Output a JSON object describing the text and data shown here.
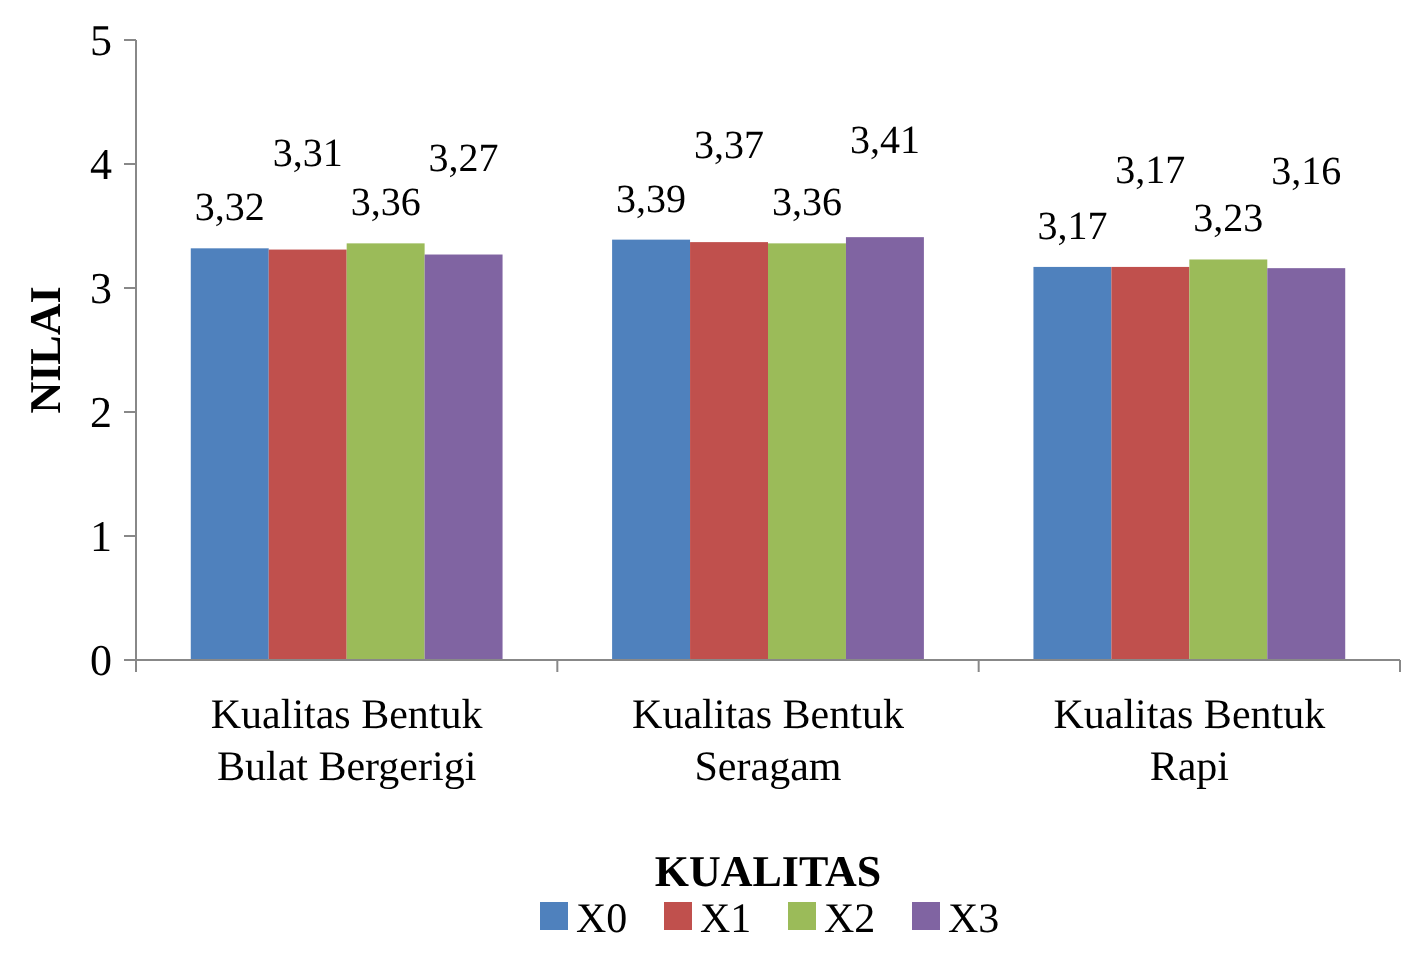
{
  "chart_data": {
    "type": "bar",
    "xlabel": "KUALITAS",
    "ylabel": "NILAI",
    "categories": [
      "Kualitas Bentuk Bulat Bergerigi",
      "Kualitas Bentuk Seragam",
      "Kualitas Bentuk Rapi"
    ],
    "series": [
      {
        "name": "X0",
        "color": "#4f81bd",
        "values": [
          3.32,
          3.39,
          3.17
        ],
        "value_labels": [
          "3,32",
          "3,39",
          "3,17"
        ]
      },
      {
        "name": "X1",
        "color": "#c0504d",
        "values": [
          3.31,
          3.37,
          3.17
        ],
        "value_labels": [
          "3,31",
          "3,37",
          "3,17"
        ]
      },
      {
        "name": "X2",
        "color": "#9bbb59",
        "values": [
          3.36,
          3.36,
          3.23
        ],
        "value_labels": [
          "3,36",
          "3,36",
          "3,23"
        ]
      },
      {
        "name": "X3",
        "color": "#8064a2",
        "values": [
          3.27,
          3.41,
          3.16
        ],
        "value_labels": [
          "3,27",
          "3,41",
          "3,16"
        ]
      }
    ],
    "ylim": [
      0,
      5
    ],
    "yticks": [
      0,
      1,
      2,
      3,
      4,
      5
    ],
    "grid": false,
    "legend": "bottom"
  }
}
